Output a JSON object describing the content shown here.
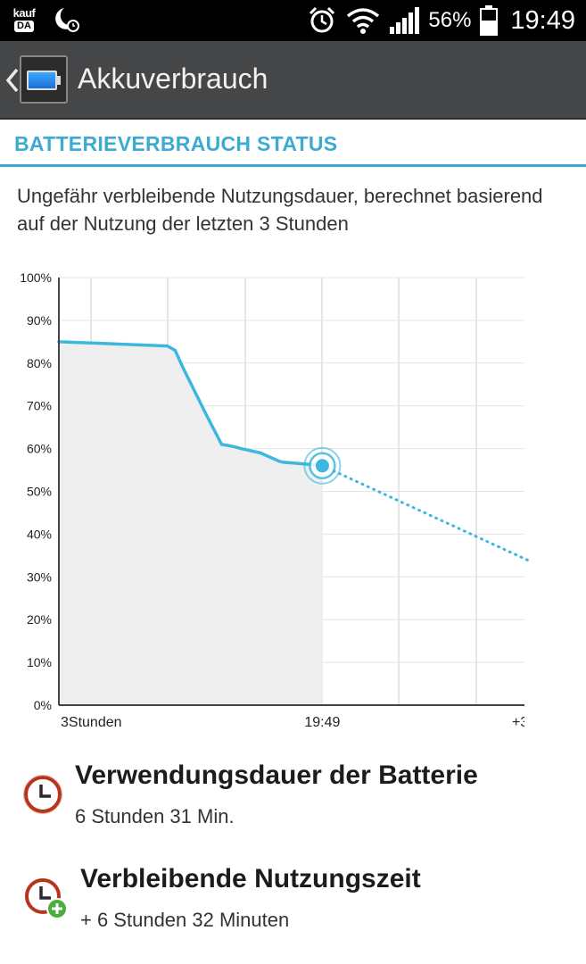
{
  "status_bar": {
    "app_badge_top": "kauf",
    "app_badge_bottom": "DA",
    "battery_percent": "56%",
    "time": "19:49"
  },
  "action_bar": {
    "title": "Akkuverbrauch"
  },
  "section": {
    "title": "BATTERIEVERBRAUCH STATUS",
    "description": "Ungefähr verbleibende Nutzungsdauer, berechnet basierend auf der Nutzung der letzten 3 Stunden"
  },
  "chart_data": {
    "type": "line",
    "y_tick_labels": [
      "100%",
      "90%",
      "80%",
      "70%",
      "60%",
      "50%",
      "40%",
      "30%",
      "20%",
      "10%",
      "0%"
    ],
    "x_tick_labels": [
      "3Stunden",
      "19:49",
      "+3"
    ],
    "ylim": [
      0,
      100
    ],
    "grid": true,
    "accent_color": "#3cb8de",
    "series": [
      {
        "style": "solid",
        "x": [
          0,
          0.28,
          0.3,
          0.32,
          0.38,
          0.42,
          0.45,
          0.47,
          0.52,
          0.57,
          0.58,
          0.65,
          0.68
        ],
        "values": [
          85,
          84,
          83,
          79,
          68,
          61,
          60.5,
          60,
          59,
          57,
          56.8,
          56.3,
          56
        ]
      },
      {
        "style": "dotted",
        "x": [
          0.68,
          1.22
        ],
        "values": [
          56,
          33.5
        ]
      }
    ],
    "current_marker": {
      "x": 0.68,
      "value": 56
    }
  },
  "info": [
    {
      "title": "Verwendungsdauer der Batterie",
      "value": "6 Stunden 31 Min."
    },
    {
      "title": "Verbleibende Nutzungszeit",
      "value": "+ 6 Stunden 32 Minuten"
    }
  ]
}
